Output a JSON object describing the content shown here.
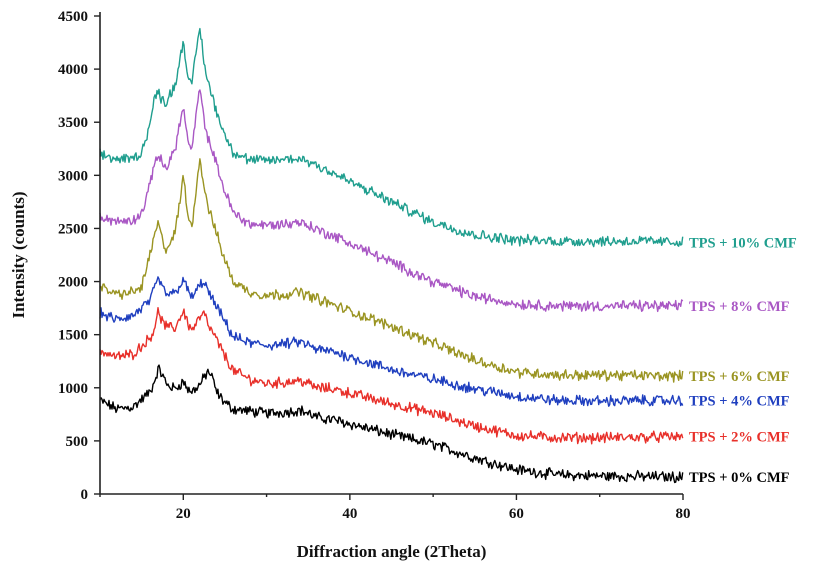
{
  "chart_data": {
    "type": "line",
    "xlabel": "Diffraction angle (2Theta)",
    "ylabel": "Intensity (counts)",
    "xlim": [
      10,
      80
    ],
    "ylim": [
      0,
      4500
    ],
    "xticks": [
      20,
      40,
      60,
      80
    ],
    "yticks": [
      0,
      500,
      1000,
      1500,
      2000,
      2500,
      3000,
      3500,
      4000,
      4500
    ],
    "grid": false,
    "legend": "labels at right end of each curve",
    "series": [
      {
        "name": "TPS + 0% CMF",
        "color": "#000000",
        "x": [
          10,
          12,
          14,
          16,
          16.5,
          17,
          17.5,
          18,
          19,
          20,
          20.5,
          21,
          22,
          23,
          23.5,
          24,
          25,
          26,
          28,
          30,
          32,
          34,
          35,
          36,
          38,
          40,
          45,
          50,
          55,
          60,
          65,
          70,
          75,
          80
        ],
        "y": [
          880,
          800,
          820,
          960,
          1050,
          1180,
          1120,
          1030,
          990,
          1060,
          990,
          960,
          1030,
          1160,
          1090,
          960,
          860,
          800,
          780,
          760,
          770,
          790,
          760,
          720,
          700,
          660,
          560,
          470,
          340,
          230,
          180,
          170,
          165,
          160
        ]
      },
      {
        "name": "TPS + 2% CMF",
        "color": "#e8302a",
        "x": [
          10,
          12,
          14,
          16,
          16.5,
          17,
          17.5,
          18,
          19,
          20,
          20.5,
          21,
          22,
          22.5,
          23,
          24,
          25,
          26,
          28,
          30,
          32,
          34,
          35,
          36,
          38,
          40,
          45,
          50,
          55,
          60,
          65,
          70,
          75,
          80
        ],
        "y": [
          1350,
          1290,
          1320,
          1470,
          1560,
          1720,
          1620,
          1570,
          1560,
          1730,
          1620,
          1540,
          1660,
          1700,
          1590,
          1450,
          1300,
          1160,
          1080,
          1040,
          1050,
          1070,
          1040,
          1000,
          990,
          950,
          850,
          760,
          640,
          550,
          530,
          530,
          535,
          540
        ]
      },
      {
        "name": "TPS + 4% CMF",
        "color": "#1f3fbf",
        "x": [
          10,
          12,
          14,
          16,
          16.5,
          17,
          17.5,
          18,
          19,
          20,
          20.5,
          21,
          22,
          22.5,
          23,
          24,
          25,
          26,
          28,
          30,
          32,
          34,
          35,
          36,
          38,
          40,
          45,
          50,
          55,
          60,
          65,
          70,
          75,
          80
        ],
        "y": [
          1700,
          1640,
          1680,
          1820,
          1920,
          2030,
          1940,
          1880,
          1890,
          2020,
          1920,
          1850,
          1960,
          2010,
          1900,
          1760,
          1620,
          1480,
          1420,
          1400,
          1410,
          1430,
          1400,
          1360,
          1340,
          1290,
          1170,
          1080,
          990,
          920,
          880,
          875,
          880,
          880
        ]
      },
      {
        "name": "TPS + 6% CMF",
        "color": "#9a9422",
        "x": [
          10,
          12,
          14,
          15,
          16,
          16.5,
          17,
          17.5,
          18,
          19,
          19.5,
          20,
          20.5,
          21,
          21.5,
          22,
          22.5,
          23,
          24,
          25,
          26,
          28,
          30,
          32,
          34,
          35,
          36,
          38,
          40,
          45,
          50,
          55,
          60,
          65,
          70,
          75,
          80
        ],
        "y": [
          1950,
          1880,
          1900,
          1950,
          2250,
          2420,
          2550,
          2380,
          2300,
          2460,
          2700,
          3000,
          2650,
          2500,
          2850,
          3150,
          2900,
          2700,
          2450,
          2200,
          2000,
          1900,
          1870,
          1880,
          1900,
          1870,
          1840,
          1780,
          1720,
          1580,
          1420,
          1260,
          1150,
          1120,
          1120,
          1115,
          1110
        ]
      },
      {
        "name": "TPS + 8% CMF",
        "color": "#a957c4",
        "x": [
          10,
          12,
          14,
          15,
          16,
          16.5,
          17,
          17.5,
          18,
          19,
          19.5,
          20,
          20.5,
          21,
          21.5,
          22,
          22.5,
          23,
          24,
          25,
          26,
          28,
          30,
          32,
          34,
          35,
          36,
          38,
          40,
          45,
          50,
          55,
          60,
          65,
          70,
          75,
          80
        ],
        "y": [
          2620,
          2560,
          2580,
          2640,
          2900,
          3120,
          3200,
          3100,
          3080,
          3250,
          3450,
          3650,
          3350,
          3200,
          3550,
          3820,
          3500,
          3350,
          3100,
          2850,
          2650,
          2540,
          2530,
          2540,
          2560,
          2530,
          2490,
          2430,
          2360,
          2180,
          2000,
          1860,
          1790,
          1770,
          1770,
          1770,
          1770
        ]
      },
      {
        "name": "TPS + 10% CMF",
        "color": "#1f9e8e",
        "x": [
          10,
          12,
          14,
          15,
          16,
          16.5,
          17,
          17.5,
          18,
          19,
          19.5,
          20,
          20.5,
          21,
          21.5,
          22,
          22.5,
          23,
          24,
          25,
          26,
          28,
          30,
          32,
          34,
          35,
          36,
          38,
          40,
          45,
          50,
          55,
          60,
          65,
          70,
          75,
          80
        ],
        "y": [
          3200,
          3150,
          3160,
          3220,
          3480,
          3720,
          3780,
          3700,
          3700,
          3850,
          4050,
          4280,
          3950,
          3820,
          4150,
          4400,
          4050,
          3880,
          3600,
          3380,
          3220,
          3140,
          3140,
          3150,
          3160,
          3130,
          3100,
          3020,
          2940,
          2750,
          2560,
          2440,
          2390,
          2380,
          2380,
          2380,
          2370
        ]
      }
    ]
  }
}
